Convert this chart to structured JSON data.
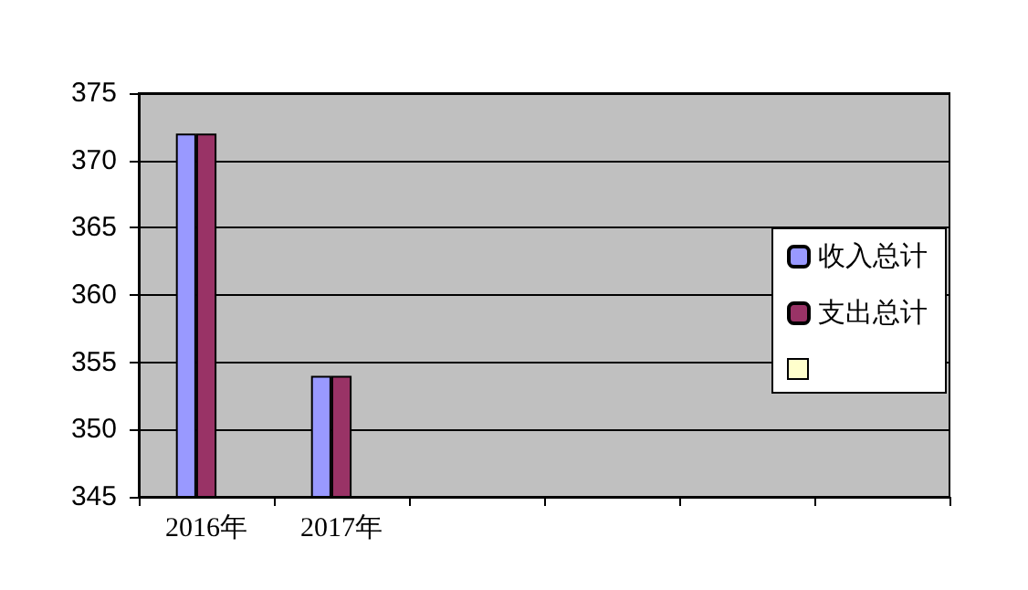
{
  "chart_data": {
    "type": "bar",
    "categories": [
      "2016年",
      "2017年",
      null,
      null,
      null,
      null
    ],
    "series": [
      {
        "name": "收入总计",
        "color": "#9999ff",
        "values": [
          372,
          354,
          null,
          null,
          null,
          null
        ]
      },
      {
        "name": "支出总计",
        "color": "#993366",
        "values": [
          372,
          354,
          null,
          null,
          null,
          null
        ]
      },
      {
        "color": "#ffffcc",
        "values": [
          null,
          null,
          null,
          null,
          null,
          null
        ]
      }
    ],
    "ylim": [
      345,
      375
    ],
    "yticks": [
      345,
      350,
      355,
      360,
      365,
      370,
      375
    ],
    "grid": "y",
    "legend": "right"
  }
}
